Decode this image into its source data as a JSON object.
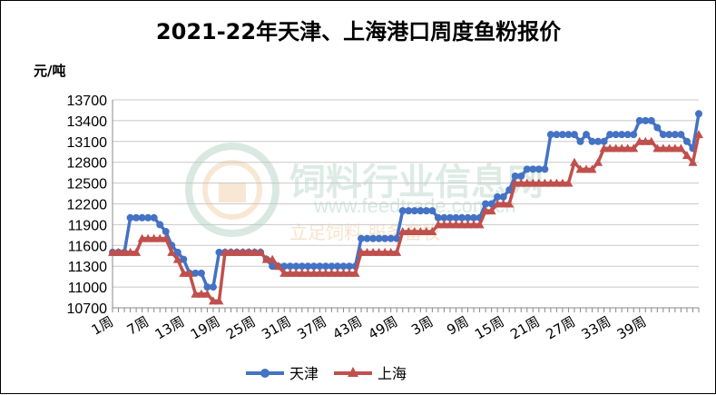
{
  "chart_data": {
    "type": "line",
    "title": "2021-22年天津、上海港口周度鱼粉报价",
    "ylabel": "元/吨",
    "ylim": [
      10700,
      13700
    ],
    "yticks": [
      10700,
      11000,
      11300,
      11600,
      11900,
      12200,
      12500,
      12800,
      13100,
      13400,
      13700
    ],
    "xtick_labels": [
      "1周",
      "7周",
      "13周",
      "19周",
      "25周",
      "31周",
      "37周",
      "43周",
      "49周",
      "3周",
      "9周",
      "15周",
      "21周",
      "27周",
      "33周",
      "39周"
    ],
    "xtick_every": 6,
    "grid": true,
    "legend_position": "bottom",
    "series": [
      {
        "name": "天津",
        "color": "#4472c4",
        "marker": "circle",
        "values": [
          11500,
          11500,
          11500,
          12000,
          12000,
          12000,
          12000,
          12000,
          11900,
          11800,
          11600,
          11500,
          11400,
          11200,
          11200,
          11200,
          11000,
          11000,
          11500,
          11500,
          11500,
          11500,
          11500,
          11500,
          11500,
          11500,
          11400,
          11300,
          11300,
          11300,
          11300,
          11300,
          11300,
          11300,
          11300,
          11300,
          11300,
          11300,
          11300,
          11300,
          11300,
          11300,
          11700,
          11700,
          11700,
          11700,
          11700,
          11700,
          11700,
          12100,
          12100,
          12100,
          12100,
          12100,
          12100,
          12000,
          12000,
          12000,
          12000,
          12000,
          12000,
          12000,
          12000,
          12200,
          12200,
          12300,
          12300,
          12400,
          12600,
          12600,
          12700,
          12700,
          12700,
          12700,
          13200,
          13200,
          13200,
          13200,
          13200,
          13100,
          13200,
          13100,
          13100,
          13100,
          13200,
          13200,
          13200,
          13200,
          13200,
          13400,
          13400,
          13400,
          13300,
          13200,
          13200,
          13200,
          13200,
          13100,
          13000,
          13500
        ]
      },
      {
        "name": "上海",
        "color": "#c0504d",
        "marker": "triangle",
        "values": [
          11500,
          11500,
          11500,
          11500,
          11500,
          11700,
          11700,
          11700,
          11700,
          11700,
          11500,
          11400,
          11200,
          11200,
          10900,
          10900,
          10900,
          10800,
          10800,
          11500,
          11500,
          11500,
          11500,
          11500,
          11500,
          11500,
          11400,
          11400,
          11300,
          11200,
          11200,
          11200,
          11200,
          11200,
          11200,
          11200,
          11200,
          11200,
          11200,
          11200,
          11200,
          11200,
          11500,
          11500,
          11500,
          11500,
          11500,
          11500,
          11500,
          11800,
          11800,
          11800,
          11800,
          11800,
          11800,
          11900,
          11900,
          11900,
          11900,
          11900,
          11900,
          11900,
          11900,
          12100,
          12100,
          12200,
          12200,
          12200,
          12500,
          12500,
          12500,
          12500,
          12500,
          12500,
          12500,
          12500,
          12500,
          12500,
          12800,
          12700,
          12700,
          12700,
          12800,
          13000,
          13000,
          13000,
          13000,
          13000,
          13000,
          13100,
          13100,
          13100,
          13000,
          13000,
          13000,
          13000,
          13000,
          12900,
          12800,
          13200
        ]
      }
    ]
  },
  "watermark": {
    "name": "饲料行业信息网",
    "url": "www.feedtrade.com.cn",
    "slogan": "立足饲料 服务畜牧"
  }
}
